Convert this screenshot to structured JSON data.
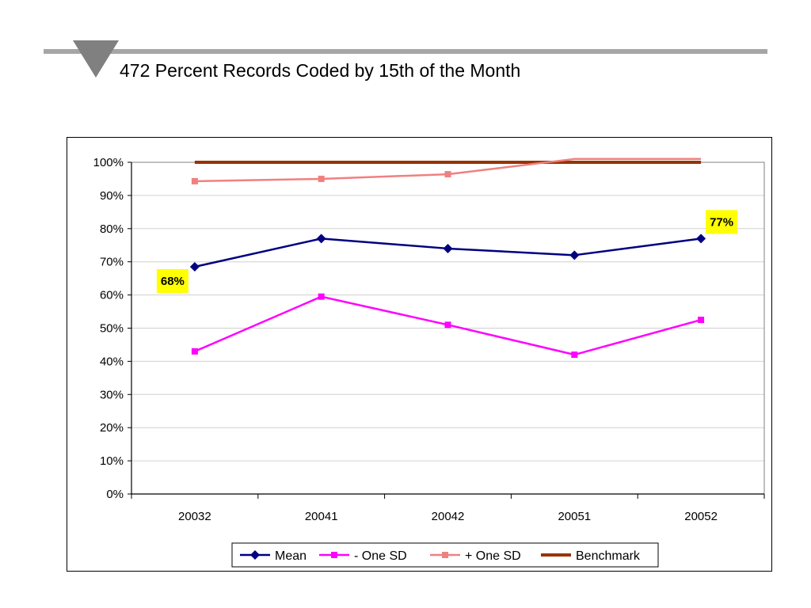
{
  "slide": {
    "title": "472 Percent Records Coded by 15th of the Month"
  },
  "colors": {
    "title_rule": "#a6a6a6",
    "title_triangle": "#808080"
  },
  "chart_data": {
    "type": "line",
    "title": "",
    "xlabel": "",
    "ylabel": "",
    "categories": [
      "20032",
      "20041",
      "20042",
      "20051",
      "20052"
    ],
    "ylim": [
      0,
      100
    ],
    "y_ticks": [
      "0%",
      "10%",
      "20%",
      "30%",
      "40%",
      "50%",
      "60%",
      "70%",
      "80%",
      "90%",
      "100%"
    ],
    "gridlines": true,
    "legend_position": "bottom",
    "series": [
      {
        "name": "Mean",
        "values": [
          68.5,
          77,
          74,
          72,
          77
        ],
        "color": "#000080",
        "marker": "diamond"
      },
      {
        "name": "- One SD",
        "values": [
          43,
          59.5,
          51,
          42,
          52.5
        ],
        "color": "#ff00ff",
        "marker": "square"
      },
      {
        "name": "+ One SD",
        "values": [
          94.3,
          95,
          96.4,
          101,
          101
        ],
        "color": "#f08080",
        "marker": "square-end"
      },
      {
        "name": "Benchmark",
        "values": [
          100,
          100,
          100,
          100,
          100
        ],
        "color": "#993300",
        "marker": "none"
      }
    ],
    "data_labels": [
      {
        "series": 0,
        "point": 0,
        "text": "68%",
        "placement": "below-left",
        "background": "#ffff00"
      },
      {
        "series": 0,
        "point": 4,
        "text": "77%",
        "placement": "above-right",
        "background": "#ffff00"
      }
    ]
  }
}
